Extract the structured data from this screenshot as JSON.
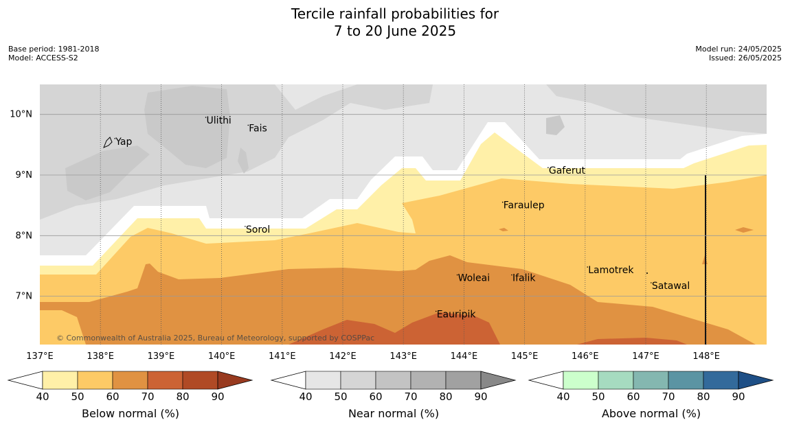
{
  "title_line1": "Tercile rainfall probabilities for",
  "title_line2": "7 to 20 June 2025",
  "meta_left": [
    "Base period: 1981-2018",
    "Model: ACCESS-S2"
  ],
  "meta_right": [
    "Model run: 24/05/2025",
    "Issued: 26/05/2025"
  ],
  "copyright": "© Commonwealth of Australia 2025, Bureau of Meteorology, supported by COSPPac",
  "map": {
    "lon_range": [
      137,
      149
    ],
    "lat_range": [
      6.2,
      10.5
    ],
    "lon_ticks": [
      "137°E",
      "138°E",
      "139°E",
      "140°E",
      "141°E",
      "142°E",
      "143°E",
      "144°E",
      "145°E",
      "146°E",
      "147°E",
      "148°E"
    ],
    "lat_ticks": [
      "10°N",
      "9°N",
      "8°N",
      "7°N"
    ],
    "places": [
      {
        "name": "Ulithi",
        "lon": 139.75,
        "lat": 9.85
      },
      {
        "name": "Fais",
        "lon": 140.45,
        "lat": 9.72
      },
      {
        "name": "Yap",
        "lon": 138.25,
        "lat": 9.5
      },
      {
        "name": "Gaferut",
        "lon": 145.4,
        "lat": 9.02
      },
      {
        "name": "Faraulep",
        "lon": 144.65,
        "lat": 8.45
      },
      {
        "name": "Sorol",
        "lon": 140.4,
        "lat": 8.05
      },
      {
        "name": "Lamotrek",
        "lon": 146.05,
        "lat": 7.38
      },
      {
        "name": "Woleai",
        "lon": 143.9,
        "lat": 7.25
      },
      {
        "name": "Ifalik",
        "lon": 144.8,
        "lat": 7.25
      },
      {
        "name": "Satawal",
        "lon": 147.1,
        "lat": 7.12
      },
      {
        "name": "Eauripik",
        "lon": 143.55,
        "lat": 6.65
      }
    ]
  },
  "colorbars": [
    {
      "label": "Below normal (%)",
      "ticks": [
        "40",
        "50",
        "60",
        "70",
        "80",
        "90"
      ],
      "colors": [
        "#fff0a8",
        "#fdca66",
        "#e09242",
        "#cc6334",
        "#b04a25",
        "#983a1f"
      ]
    },
    {
      "label": "Near normal (%)",
      "ticks": [
        "40",
        "50",
        "60",
        "70",
        "80",
        "90"
      ],
      "colors": [
        "#e6e6e6",
        "#d5d5d5",
        "#c3c3c3",
        "#b2b2b2",
        "#a1a1a1",
        "#888888"
      ]
    },
    {
      "label": "Above normal (%)",
      "ticks": [
        "40",
        "50",
        "60",
        "70",
        "80",
        "90"
      ],
      "colors": [
        "#ccffcc",
        "#a6dbc0",
        "#84b7b0",
        "#5b94a3",
        "#336a9b",
        "#1e4f86"
      ]
    }
  ]
}
